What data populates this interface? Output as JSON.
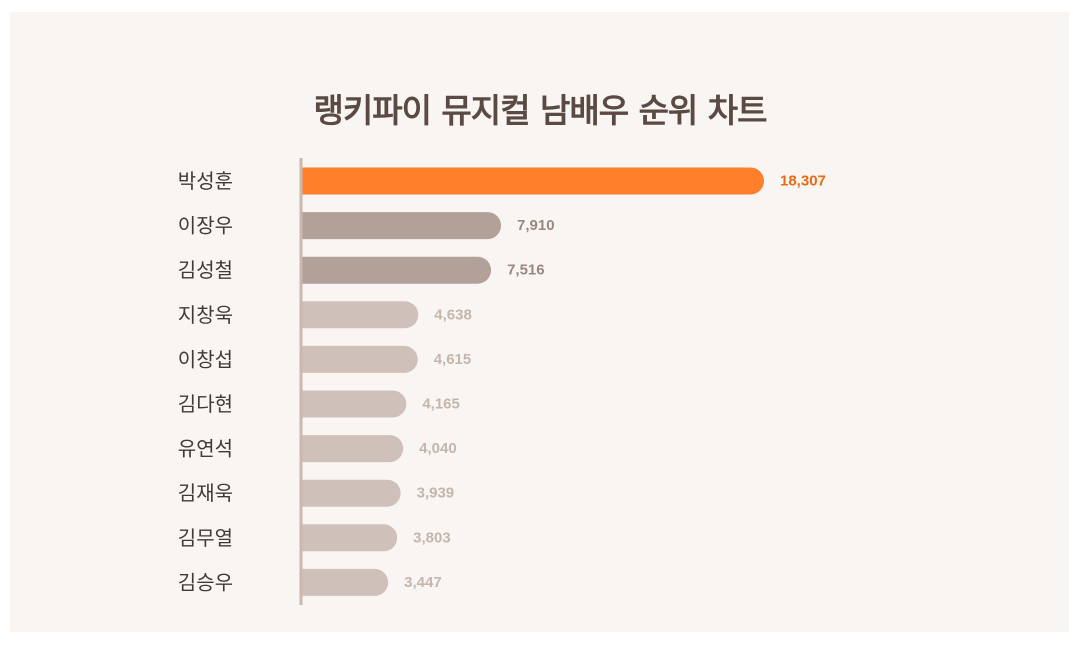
{
  "chart_data": {
    "type": "bar",
    "orientation": "horizontal",
    "title": "랭키파이 뮤지컬 남배우 순위 차트",
    "categories": [
      "박성훈",
      "이장우",
      "김성철",
      "지창욱",
      "이창섭",
      "김다현",
      "유연석",
      "김재욱",
      "김무열",
      "김승우"
    ],
    "values": [
      18307,
      7910,
      7516,
      4638,
      4615,
      4165,
      4040,
      3939,
      3803,
      3447
    ],
    "value_labels": [
      "18,307",
      "7,910",
      "7,516",
      "4,638",
      "4,615",
      "4,165",
      "4,040",
      "3,939",
      "3,803",
      "3,447"
    ],
    "xlim": [
      0,
      18307
    ],
    "grid": false,
    "legend": "none",
    "colors": {
      "background": "#f9f5f2",
      "axis": "#c9b9af",
      "rank1_bar": "#ff7f2a",
      "rank1_label": "#e96a14",
      "rank2_3_bar": "#b3a199",
      "rank2_3_label": "#9a8880",
      "other_bar": "#cfc1b9",
      "other_label": "#c5b6ad"
    }
  }
}
